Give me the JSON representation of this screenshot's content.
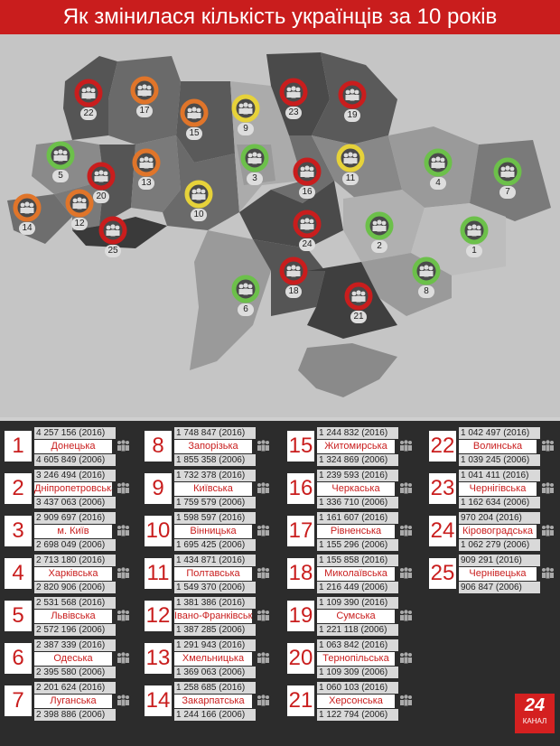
{
  "title": "Як змінилася кількість українців за 10 років",
  "colors": {
    "red": "#c91d1d",
    "orange": "#e0752a",
    "yellow": "#e6d23a",
    "green": "#6cc04a"
  },
  "map_regions": [
    {
      "num": "22",
      "trend": "red"
    },
    {
      "num": "17",
      "trend": "orange"
    },
    {
      "num": "15",
      "trend": "orange"
    },
    {
      "num": "9",
      "trend": "yellow"
    },
    {
      "num": "23",
      "trend": "red"
    },
    {
      "num": "19",
      "trend": "red"
    },
    {
      "num": "5",
      "trend": "green"
    },
    {
      "num": "20",
      "trend": "red"
    },
    {
      "num": "13",
      "trend": "orange"
    },
    {
      "num": "3",
      "trend": "green"
    },
    {
      "num": "16",
      "trend": "red"
    },
    {
      "num": "11",
      "trend": "yellow"
    },
    {
      "num": "4",
      "trend": "green"
    },
    {
      "num": "7",
      "trend": "green"
    },
    {
      "num": "14",
      "trend": "orange"
    },
    {
      "num": "12",
      "trend": "orange"
    },
    {
      "num": "25",
      "trend": "red"
    },
    {
      "num": "10",
      "trend": "yellow"
    },
    {
      "num": "24",
      "trend": "red"
    },
    {
      "num": "2",
      "trend": "green"
    },
    {
      "num": "1",
      "trend": "green"
    },
    {
      "num": "6",
      "trend": "green"
    },
    {
      "num": "18",
      "trend": "red"
    },
    {
      "num": "8",
      "trend": "green"
    },
    {
      "num": "21",
      "trend": "red"
    }
  ],
  "entries": [
    {
      "n": "1",
      "name": "Донецька",
      "v2016": "4 257 156  (2016)",
      "v2006": "4 605 849  (2006)"
    },
    {
      "n": "2",
      "name": "Дніпропетровська",
      "v2016": "3 246 494  (2016)",
      "v2006": "3 437 063  (2006)"
    },
    {
      "n": "3",
      "name": "м. Київ",
      "v2016": "2 909 697  (2016)",
      "v2006": "2 698 049  (2006)"
    },
    {
      "n": "4",
      "name": "Харківська",
      "v2016": "2 713 180  (2016)",
      "v2006": "2 820 906  (2006)"
    },
    {
      "n": "5",
      "name": "Львівська",
      "v2016": "2 531 568  (2016)",
      "v2006": "2 572 196  (2006)"
    },
    {
      "n": "6",
      "name": "Одеська",
      "v2016": "2 387 339  (2016)",
      "v2006": "2 395 580  (2006)"
    },
    {
      "n": "7",
      "name": "Луганська",
      "v2016": "2 201 624  (2016)",
      "v2006": "2 398 886  (2006)"
    },
    {
      "n": "8",
      "name": "Запорізька",
      "v2016": "1 748 847  (2016)",
      "v2006": "1 855 358  (2006)"
    },
    {
      "n": "9",
      "name": "Київська",
      "v2016": "1 732 378  (2016)",
      "v2006": "1 759 579  (2006)"
    },
    {
      "n": "10",
      "name": "Вінницька",
      "v2016": "1 598 597  (2016)",
      "v2006": "1 695 425  (2006)"
    },
    {
      "n": "11",
      "name": "Полтавська",
      "v2016": "1 434 871  (2016)",
      "v2006": "1 549 370  (2006)"
    },
    {
      "n": "12",
      "name": "Івано-Франківська",
      "v2016": "1 381 386  (2016)",
      "v2006": "1 387 285  (2006)"
    },
    {
      "n": "13",
      "name": "Хмельницька",
      "v2016": "1 291 943  (2016)",
      "v2006": "1 369 063  (2006)"
    },
    {
      "n": "14",
      "name": "Закарпатська",
      "v2016": "1 258 685  (2016)",
      "v2006": "1 244 166  (2006)"
    },
    {
      "n": "15",
      "name": "Житомирська",
      "v2016": "1 244 832  (2016)",
      "v2006": "1 324 869  (2006)"
    },
    {
      "n": "16",
      "name": "Черкаська",
      "v2016": "1 239 593  (2016)",
      "v2006": "1 336 710  (2006)"
    },
    {
      "n": "17",
      "name": "Рівненська",
      "v2016": "1 161 607  (2016)",
      "v2006": "1 155 296  (2006)"
    },
    {
      "n": "18",
      "name": "Миколаївська",
      "v2016": "1 155 858  (2016)",
      "v2006": "1 216 449  (2006)"
    },
    {
      "n": "19",
      "name": "Сумська",
      "v2016": "1 109 390  (2016)",
      "v2006": "1 221 118  (2006)"
    },
    {
      "n": "20",
      "name": "Тернопільська",
      "v2016": "1 063 842  (2016)",
      "v2006": "1 109 309  (2006)"
    },
    {
      "n": "21",
      "name": "Херсонська",
      "v2016": "1 060 103  (2016)",
      "v2006": "1 122 794  (2006)"
    },
    {
      "n": "22",
      "name": "Волинська",
      "v2016": "1 042 497  (2016)",
      "v2006": "1 039 245  (2006)"
    },
    {
      "n": "23",
      "name": "Чернігівська",
      "v2016": "1 041 411  (2016)",
      "v2006": "1 162 634  (2006)"
    },
    {
      "n": "24",
      "name": "Кіровоградська",
      "v2016": "970 204  (2016)",
      "v2006": "1 062 279  (2006)"
    },
    {
      "n": "25",
      "name": "Чернівецька",
      "v2016": "909 291  (2016)",
      "v2006": "906 847  (2006)"
    }
  ],
  "logo": {
    "number": "24",
    "caption": "КАНАЛ"
  }
}
